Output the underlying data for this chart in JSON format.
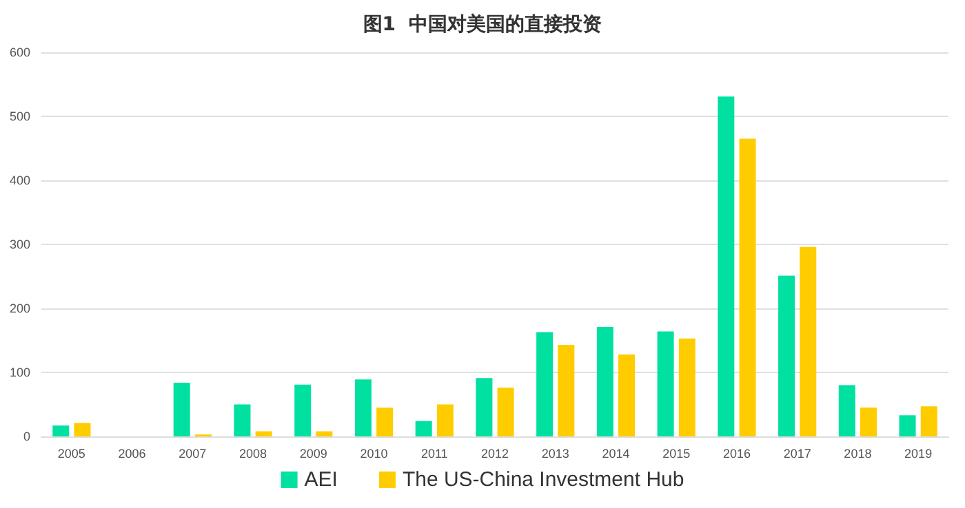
{
  "chart_data": {
    "type": "bar",
    "title": "图1  中国对美国的直接投资",
    "categories": [
      "2005",
      "2006",
      "2007",
      "2008",
      "2009",
      "2010",
      "2011",
      "2012",
      "2013",
      "2014",
      "2015",
      "2016",
      "2017",
      "2018",
      "2019"
    ],
    "series": [
      {
        "name": "AEI",
        "color": "#00e0a0",
        "values": [
          17,
          0,
          84,
          50,
          81,
          89,
          24,
          91,
          163,
          171,
          164,
          531,
          251,
          80,
          33
        ]
      },
      {
        "name": "The US-China Investment Hub",
        "color": "#ffcc00",
        "values": [
          21,
          0,
          3,
          8,
          8,
          45,
          50,
          76,
          143,
          128,
          153,
          465,
          296,
          45,
          47
        ]
      }
    ],
    "ylim": [
      0,
      600
    ],
    "yticks": [
      0,
      100,
      200,
      300,
      400,
      500,
      600
    ],
    "grid": "y",
    "legend": "bottom"
  }
}
